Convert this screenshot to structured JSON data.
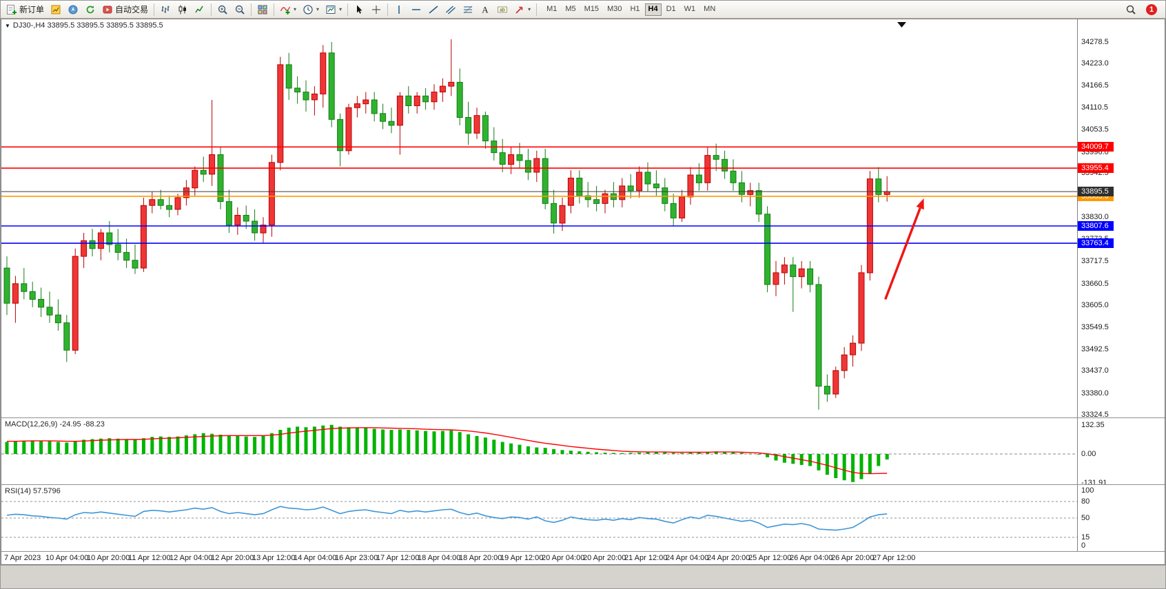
{
  "toolbar": {
    "items": [
      {
        "name": "new-order-button",
        "icon": "new-order-icon",
        "label": "新订单"
      },
      {
        "name": "market-watch-button",
        "icon": "market-watch-icon"
      },
      {
        "name": "navigator-button",
        "icon": "navigator-icon"
      },
      {
        "name": "refresh-button",
        "icon": "refresh-icon"
      },
      {
        "name": "autotrading-button",
        "icon": "autotrading-icon",
        "label": "自动交易"
      },
      {
        "sep": true
      },
      {
        "name": "bar-chart-button",
        "icon": "bar-chart-icon"
      },
      {
        "name": "candlestick-chart-button",
        "icon": "candlestick-icon"
      },
      {
        "name": "line-chart-button",
        "icon": "line-chart-icon"
      },
      {
        "sep": true
      },
      {
        "name": "zoom-in-button",
        "icon": "zoom-in-icon"
      },
      {
        "name": "zoom-out-button",
        "icon": "zoom-out-icon"
      },
      {
        "sep": true
      },
      {
        "name": "tile-windows-button",
        "icon": "tile-windows-icon"
      },
      {
        "sep": true
      },
      {
        "name": "indicators-button",
        "icon": "indicators-icon",
        "dropdown": true
      },
      {
        "name": "periods-button",
        "icon": "periods-icon",
        "dropdown": true
      },
      {
        "name": "templates-button",
        "icon": "templates-icon",
        "dropdown": true
      },
      {
        "sep": true
      },
      {
        "name": "cursor-button",
        "icon": "cursor-icon"
      },
      {
        "name": "crosshair-button",
        "icon": "crosshair-icon"
      },
      {
        "sep": true
      },
      {
        "name": "vertical-line-button",
        "icon": "vertical-line-icon"
      },
      {
        "name": "horizontal-line-button",
        "icon": "horizontal-line-icon"
      },
      {
        "name": "trendline-button",
        "icon": "trendline-icon"
      },
      {
        "name": "equidistant-channel-button",
        "icon": "channel-icon"
      },
      {
        "name": "fibonacci-button",
        "icon": "fibonacci-icon"
      },
      {
        "name": "text-button",
        "icon": "text-icon"
      },
      {
        "name": "text-label-button",
        "icon": "text-label-icon"
      },
      {
        "name": "arrows-button",
        "icon": "arrows-icon",
        "dropdown": true
      },
      {
        "sep": true
      }
    ],
    "timeframes": [
      "M1",
      "M5",
      "M15",
      "M30",
      "H1",
      "H4",
      "D1",
      "W1",
      "MN"
    ],
    "active_timeframe": "H4",
    "notification_count": "1"
  },
  "chart_data": [
    {
      "type": "candlestick",
      "symbol": "DJ30-",
      "timeframe": "H4",
      "title": "DJ30-,H4  33895.5 33895.5 33895.5 33895.5",
      "ohlc_display": [
        "33895.5",
        "33895.5",
        "33895.5",
        "33895.5"
      ],
      "ylim": [
        33318,
        34336
      ],
      "price_axis_labels": [
        "34278.5",
        "34223.0",
        "34166.5",
        "34110.5",
        "34053.5",
        "33996.0",
        "33942.5",
        "33886.0",
        "33830.0",
        "33773.5",
        "33717.5",
        "33660.5",
        "33605.0",
        "33549.5",
        "33492.5",
        "33437.0",
        "33380.0",
        "33324.5"
      ],
      "x_labels": [
        "7 Apr 2023",
        "10 Apr 04:00",
        "10 Apr 20:00",
        "11 Apr 12:00",
        "12 Apr 04:00",
        "12 Apr 20:00",
        "13 Apr 12:00",
        "14 Apr 04:00",
        "16 Apr 23:00",
        "17 Apr 12:00",
        "18 Apr 04:00",
        "18 Apr 20:00",
        "19 Apr 12:00",
        "20 Apr 04:00",
        "20 Apr 20:00",
        "21 Apr 12:00",
        "24 Apr 04:00",
        "24 Apr 20:00",
        "25 Apr 12:00",
        "26 Apr 04:00",
        "26 Apr 20:00",
        "27 Apr 12:00"
      ],
      "up_color": "#ef3636",
      "up_border": "#b80000",
      "down_color": "#2fb32f",
      "down_border": "#157a15",
      "levels": [
        {
          "price": 34009.7,
          "color": "#ff0000"
        },
        {
          "price": 33955.4,
          "color": "#ff0000"
        },
        {
          "price": 33883.6,
          "color": "#ff9900"
        },
        {
          "price": 33807.6,
          "color": "#0000ff"
        },
        {
          "price": 33763.4,
          "color": "#0000ff"
        }
      ],
      "current_price": {
        "value": 33895.5,
        "line_color": "#3a3a3a",
        "badge_color": "#2f2f2f"
      },
      "annotations": [
        {
          "type": "arrow",
          "color": "#f01616",
          "from": {
            "index": 102.8,
            "price": 33620
          },
          "to": {
            "index": 107.3,
            "price": 33878
          }
        },
        {
          "type": "triangle-marker",
          "color": "#111111"
        }
      ],
      "candles_ohlc": [
        [
          33700,
          33730,
          33580,
          33610
        ],
        [
          33610,
          33680,
          33560,
          33660
        ],
        [
          33660,
          33700,
          33620,
          33640
        ],
        [
          33640,
          33665,
          33600,
          33620
        ],
        [
          33620,
          33650,
          33575,
          33600
        ],
        [
          33600,
          33640,
          33560,
          33580
        ],
        [
          33580,
          33620,
          33540,
          33560
        ],
        [
          33560,
          33580,
          33460,
          33490
        ],
        [
          33490,
          33750,
          33480,
          33730
        ],
        [
          33730,
          33790,
          33700,
          33770
        ],
        [
          33770,
          33800,
          33730,
          33750
        ],
        [
          33750,
          33800,
          33720,
          33790
        ],
        [
          33790,
          33820,
          33740,
          33760
        ],
        [
          33760,
          33800,
          33720,
          33740
        ],
        [
          33740,
          33775,
          33700,
          33720
        ],
        [
          33720,
          33760,
          33685,
          33700
        ],
        [
          33700,
          33880,
          33690,
          33860
        ],
        [
          33860,
          33895,
          33840,
          33875
        ],
        [
          33875,
          33900,
          33850,
          33860
        ],
        [
          33860,
          33885,
          33830,
          33850
        ],
        [
          33850,
          33890,
          33835,
          33880
        ],
        [
          33880,
          33925,
          33860,
          33905
        ],
        [
          33905,
          33960,
          33885,
          33950
        ],
        [
          33950,
          33985,
          33920,
          33940
        ],
        [
          33940,
          34130,
          33910,
          33990
        ],
        [
          33990,
          34010,
          33850,
          33870
        ],
        [
          33870,
          33900,
          33790,
          33810
        ],
        [
          33810,
          33855,
          33785,
          33835
        ],
        [
          33835,
          33860,
          33800,
          33820
        ],
        [
          33820,
          33850,
          33770,
          33790
        ],
        [
          33790,
          33830,
          33765,
          33810
        ],
        [
          33810,
          33990,
          33780,
          33970
        ],
        [
          33970,
          34240,
          33950,
          34220
        ],
        [
          34220,
          34250,
          34130,
          34160
        ],
        [
          34160,
          34190,
          34120,
          34150
        ],
        [
          34150,
          34180,
          34100,
          34130
        ],
        [
          34130,
          34165,
          34090,
          34145
        ],
        [
          34145,
          34270,
          34110,
          34250
        ],
        [
          34250,
          34278,
          34060,
          34080
        ],
        [
          34080,
          34095,
          33960,
          34000
        ],
        [
          34000,
          34120,
          33990,
          34110
        ],
        [
          34110,
          34140,
          34085,
          34120
        ],
        [
          34120,
          34150,
          34095,
          34130
        ],
        [
          34130,
          34150,
          34075,
          34095
        ],
        [
          34095,
          34120,
          34055,
          34075
        ],
        [
          34075,
          34110,
          34045,
          34065
        ],
        [
          34065,
          34150,
          33990,
          34140
        ],
        [
          34140,
          34165,
          34095,
          34115
        ],
        [
          34115,
          34150,
          34095,
          34140
        ],
        [
          34140,
          34160,
          34105,
          34125
        ],
        [
          34125,
          34170,
          34105,
          34150
        ],
        [
          34150,
          34185,
          34125,
          34165
        ],
        [
          34165,
          34285,
          34140,
          34175
        ],
        [
          34175,
          34210,
          34065,
          34085
        ],
        [
          34085,
          34125,
          34015,
          34045
        ],
        [
          34045,
          34110,
          34030,
          34090
        ],
        [
          34090,
          34100,
          34005,
          34025
        ],
        [
          34025,
          34060,
          33975,
          33995
        ],
        [
          33995,
          34030,
          33945,
          33965
        ],
        [
          33965,
          34010,
          33940,
          33990
        ],
        [
          33990,
          34020,
          33955,
          33975
        ],
        [
          33975,
          34005,
          33925,
          33945
        ],
        [
          33945,
          34000,
          33920,
          33980
        ],
        [
          33980,
          34005,
          33850,
          33865
        ],
        [
          33865,
          33900,
          33788,
          33815
        ],
        [
          33815,
          33880,
          33795,
          33860
        ],
        [
          33860,
          33950,
          33840,
          33930
        ],
        [
          33930,
          33950,
          33865,
          33885
        ],
        [
          33885,
          33920,
          33855,
          33875
        ],
        [
          33875,
          33910,
          33845,
          33865
        ],
        [
          33865,
          33900,
          33840,
          33890
        ],
        [
          33890,
          33920,
          33855,
          33875
        ],
        [
          33875,
          33930,
          33855,
          33910
        ],
        [
          33910,
          33940,
          33878,
          33898
        ],
        [
          33898,
          33960,
          33880,
          33945
        ],
        [
          33945,
          33970,
          33895,
          33915
        ],
        [
          33915,
          33950,
          33885,
          33905
        ],
        [
          33905,
          33930,
          33845,
          33865
        ],
        [
          33865,
          33890,
          33808,
          33828
        ],
        [
          33828,
          33900,
          33818,
          33882
        ],
        [
          33882,
          33958,
          33862,
          33938
        ],
        [
          33938,
          33968,
          33898,
          33918
        ],
        [
          33918,
          34008,
          33898,
          33988
        ],
        [
          33988,
          34018,
          33948,
          33978
        ],
        [
          33978,
          34000,
          33928,
          33948
        ],
        [
          33948,
          33978,
          33898,
          33918
        ],
        [
          33918,
          33948,
          33868,
          33888
        ],
        [
          33888,
          33918,
          33858,
          33898
        ],
        [
          33898,
          33918,
          33818,
          33838
        ],
        [
          33838,
          33858,
          33638,
          33658
        ],
        [
          33658,
          33718,
          33628,
          33688
        ],
        [
          33688,
          33728,
          33658,
          33708
        ],
        [
          33708,
          33728,
          33588,
          33678
        ],
        [
          33678,
          33718,
          33648,
          33698
        ],
        [
          33698,
          33718,
          33638,
          33658
        ],
        [
          33658,
          33678,
          33338,
          33398
        ],
        [
          33398,
          33428,
          33358,
          33378
        ],
        [
          33378,
          33448,
          33368,
          33438
        ],
        [
          33438,
          33498,
          33418,
          33478
        ],
        [
          33478,
          33528,
          33448,
          33508
        ],
        [
          33508,
          33708,
          33488,
          33688
        ],
        [
          33688,
          33948,
          33668,
          33928
        ],
        [
          33928,
          33958,
          33868,
          33888
        ],
        [
          33888,
          33935,
          33870,
          33895.5
        ]
      ]
    },
    {
      "type": "bar",
      "name": "MACD",
      "label": "MACD(12,26,9) -24.95 -88.23",
      "params": "12,26,9",
      "value": -24.95,
      "signal_value": -88.23,
      "axis_labels": [
        "132.35",
        "0.00",
        "-131.91"
      ],
      "bar_color": "#00b400",
      "signal_color": "#ff0000",
      "histogram": [
        55,
        58,
        60,
        62,
        60,
        58,
        55,
        52,
        58,
        65,
        68,
        70,
        72,
        70,
        68,
        66,
        72,
        78,
        80,
        78,
        80,
        85,
        90,
        95,
        92,
        88,
        85,
        82,
        80,
        78,
        85,
        95,
        110,
        120,
        125,
        122,
        125,
        130,
        133,
        125,
        122,
        120,
        118,
        115,
        112,
        110,
        112,
        110,
        108,
        105,
        103,
        105,
        108,
        100,
        90,
        82,
        75,
        65,
        55,
        48,
        42,
        35,
        30,
        28,
        22,
        18,
        15,
        12,
        10,
        8,
        6,
        5,
        4,
        5,
        6,
        8,
        10,
        8,
        5,
        4,
        6,
        8,
        10,
        12,
        10,
        8,
        5,
        2,
        -2,
        -15,
        -30,
        -40,
        -45,
        -50,
        -55,
        -75,
        -95,
        -110,
        -120,
        -128,
        -115,
        -90,
        -55,
        -25
      ],
      "signal": [
        58,
        58,
        59,
        60,
        60,
        60,
        59,
        58,
        58,
        59,
        61,
        63,
        64,
        65,
        66,
        66,
        67,
        69,
        71,
        72,
        74,
        76,
        78,
        80,
        82,
        83,
        84,
        84,
        84,
        84,
        84,
        86,
        90,
        95,
        100,
        104,
        108,
        112,
        116,
        118,
        119,
        120,
        120,
        120,
        119,
        118,
        117,
        116,
        115,
        113,
        112,
        111,
        110,
        108,
        105,
        101,
        96,
        90,
        83,
        76,
        69,
        62,
        55,
        49,
        44,
        39,
        34,
        30,
        26,
        22,
        19,
        16,
        13,
        11,
        10,
        9,
        9,
        9,
        8,
        8,
        8,
        8,
        8,
        9,
        9,
        9,
        8,
        7,
        5,
        1,
        -5,
        -12,
        -19,
        -26,
        -33,
        -42,
        -52,
        -63,
        -74,
        -84,
        -89,
        -90,
        -89,
        -88
      ]
    },
    {
      "type": "line",
      "name": "RSI",
      "label": "RSI(14) 57.5796",
      "params": "14",
      "value": 57.5796,
      "axis_labels": [
        "100",
        "80",
        "50",
        "15",
        "0"
      ],
      "levels": [
        80,
        50,
        15
      ],
      "ylim": [
        0,
        100
      ],
      "line_color": "#3d95d6",
      "values": [
        55,
        57,
        56,
        54,
        53,
        51,
        50,
        48,
        56,
        60,
        59,
        61,
        59,
        57,
        55,
        53,
        62,
        64,
        63,
        61,
        63,
        65,
        68,
        66,
        69,
        62,
        58,
        60,
        58,
        56,
        58,
        65,
        71,
        68,
        67,
        65,
        66,
        70,
        64,
        58,
        62,
        64,
        65,
        62,
        60,
        58,
        64,
        61,
        63,
        61,
        63,
        65,
        66,
        60,
        56,
        59,
        54,
        51,
        49,
        52,
        51,
        48,
        52,
        45,
        42,
        46,
        52,
        49,
        47,
        46,
        48,
        46,
        49,
        47,
        51,
        49,
        48,
        44,
        41,
        47,
        52,
        49,
        55,
        53,
        50,
        47,
        44,
        46,
        41,
        33,
        36,
        39,
        38,
        40,
        37,
        30,
        29,
        28,
        30,
        33,
        42,
        52,
        56,
        57.58
      ]
    }
  ]
}
